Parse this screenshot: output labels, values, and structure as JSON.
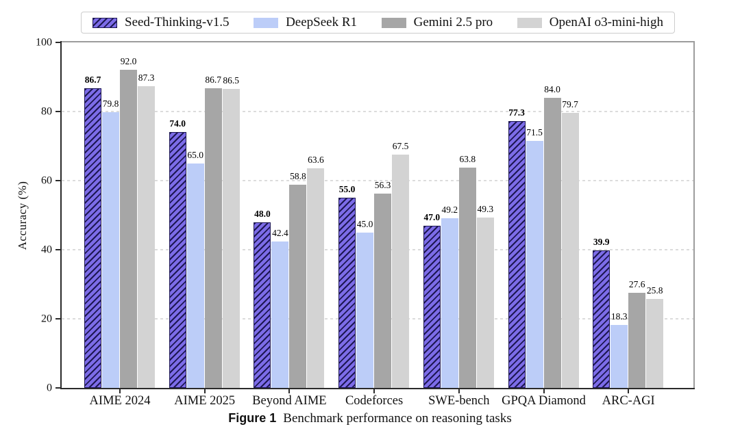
{
  "figure": {
    "caption_label": "Figure 1",
    "caption_text": "Benchmark performance on reasoning tasks"
  },
  "axes": {
    "ylabel": "Accuracy (%)"
  },
  "chart_data": {
    "type": "bar",
    "title": "",
    "xlabel": "",
    "ylabel": "Accuracy (%)",
    "ylim": [
      0,
      100
    ],
    "yticks": [
      0,
      20,
      40,
      60,
      80,
      100
    ],
    "grid": "horizontal-dashed",
    "legend_position": "top-outside",
    "value_label_format": "one-decimal",
    "categories": [
      "AIME 2024",
      "AIME 2025",
      "Beyond AIME",
      "Codeforces",
      "SWE-bench",
      "GPQA Diamond",
      "ARC-AGI"
    ],
    "series": [
      {
        "name": "Seed-Thinking-v1.5",
        "color": "#7c6ce8",
        "hatch": "//",
        "hatch_color": "#1d1752",
        "bold_value_labels": true,
        "values": [
          86.7,
          74.0,
          48.0,
          55.0,
          47.0,
          77.3,
          39.9
        ]
      },
      {
        "name": "DeepSeek R1",
        "color": "#bccdf8",
        "hatch": null,
        "bold_value_labels": false,
        "values": [
          79.8,
          65.0,
          42.4,
          45.0,
          49.2,
          71.5,
          18.3
        ]
      },
      {
        "name": "Gemini 2.5 pro",
        "color": "#a6a6a6",
        "hatch": null,
        "bold_value_labels": false,
        "values": [
          92.0,
          86.7,
          58.8,
          56.3,
          63.8,
          84.0,
          27.6
        ]
      },
      {
        "name": "OpenAI o3-mini-high",
        "color": "#d3d3d3",
        "hatch": null,
        "bold_value_labels": false,
        "values": [
          87.3,
          86.5,
          63.6,
          67.5,
          49.3,
          79.7,
          25.8
        ]
      }
    ],
    "colors": {
      "grid": "#dcdcdc",
      "spine_dark": "#2a2a2a",
      "spine_light": "#9c9c9c",
      "legend_border": "#cccccc",
      "background": "#ffffff"
    }
  }
}
